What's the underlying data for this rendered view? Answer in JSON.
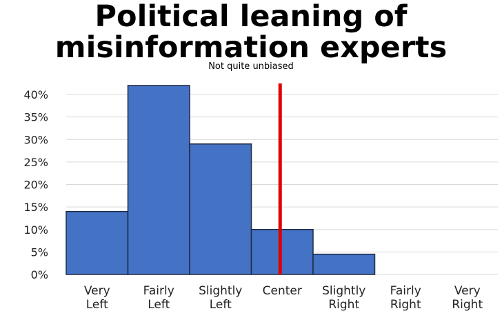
{
  "chart_data": {
    "type": "bar",
    "title_lines": [
      "Political leaning of",
      "misinformation experts"
    ],
    "subtitle": "Not quite unbiased",
    "categories": [
      [
        "Very",
        "Left"
      ],
      [
        "Fairly",
        "Left"
      ],
      [
        "Slightly",
        "Left"
      ],
      [
        "Center"
      ],
      [
        "Slightly",
        "Right"
      ],
      [
        "Fairly",
        "Right"
      ],
      [
        "Very",
        "Right"
      ]
    ],
    "values": [
      14,
      42,
      29,
      10,
      4.5,
      0,
      0
    ],
    "ylim": [
      0,
      40
    ],
    "yticks": [
      0,
      5,
      10,
      15,
      20,
      25,
      30,
      35,
      40
    ],
    "ytick_suffix": "%",
    "grid": true,
    "center_marker_category_index": 3,
    "colors": {
      "bar": "#4472c4",
      "bar_border": "#1f2a44",
      "marker": "#e00000",
      "grid": "#d9d9d9"
    }
  }
}
